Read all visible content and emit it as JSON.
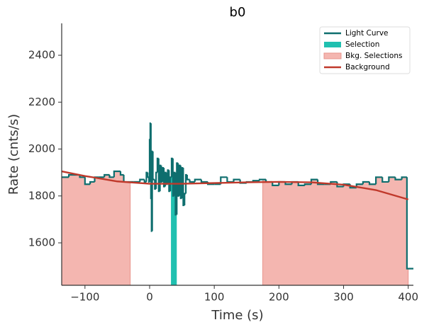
{
  "chart_data": {
    "type": "line",
    "title": "b0",
    "x_label": "Time (s)",
    "y_label": "Rate (cnts/s)",
    "xlim": [
      -136,
      408
    ],
    "ylim": [
      1419,
      2536
    ],
    "xticks": [
      {
        "value": -100,
        "label": "−100"
      },
      0,
      100,
      200,
      300,
      400
    ],
    "yticks": [
      1600,
      1800,
      2000,
      2200,
      2400
    ],
    "legend": "upper right",
    "series": [
      {
        "name": "Light Curve",
        "color": "#0e6e6e",
        "step": "post",
        "x": [
          -136,
          -125,
          -108,
          -100,
          -92,
          -85,
          -78,
          -70,
          -62,
          -55,
          -45,
          -40,
          -30,
          -25,
          -15,
          -8,
          -5,
          -3,
          -1,
          0,
          1,
          2,
          3,
          4,
          5,
          8,
          10,
          12,
          14,
          16,
          18,
          20,
          22,
          24,
          26,
          28,
          30,
          32,
          34,
          36,
          38,
          40,
          42,
          44,
          46,
          48,
          50,
          52,
          54,
          56,
          58,
          62,
          70,
          80,
          90,
          100,
          110,
          120,
          130,
          140,
          150,
          160,
          170,
          180,
          190,
          200,
          210,
          220,
          230,
          240,
          250,
          260,
          270,
          280,
          290,
          300,
          310,
          320,
          330,
          340,
          350,
          360,
          370,
          380,
          390,
          398
        ],
        "values": [
          1880,
          1890,
          1880,
          1850,
          1860,
          1880,
          1880,
          1890,
          1880,
          1905,
          1890,
          1860,
          1860,
          1860,
          1870,
          1860,
          1900,
          1880,
          1860,
          2040,
          2110,
          1790,
          1650,
          1990,
          1870,
          1830,
          1900,
          1960,
          1820,
          1930,
          1860,
          1920,
          1840,
          1900,
          1850,
          1910,
          1820,
          1880,
          1960,
          1800,
          1900,
          1720,
          1940,
          1800,
          1930,
          1790,
          1920,
          1760,
          1810,
          1890,
          1870,
          1860,
          1870,
          1860,
          1850,
          1850,
          1880,
          1860,
          1870,
          1855,
          1860,
          1865,
          1870,
          1860,
          1845,
          1860,
          1850,
          1860,
          1845,
          1850,
          1870,
          1850,
          1850,
          1860,
          1840,
          1850,
          1835,
          1850,
          1860,
          1850,
          1880,
          1860,
          1880,
          1870,
          1880,
          1490
        ]
      },
      {
        "name": "Background",
        "color": "#c0392b",
        "x": [
          -136,
          -100,
          -50,
          0,
          50,
          100,
          150,
          200,
          250,
          300,
          350,
          400
        ],
        "values": [
          1905,
          1885,
          1862,
          1852,
          1852,
          1855,
          1858,
          1860,
          1858,
          1848,
          1825,
          1785
        ]
      }
    ],
    "spans": [
      {
        "name": "Selection",
        "color": "#20c0b0",
        "intervals": [
          [
            33,
            42
          ]
        ]
      },
      {
        "name": "Bkg. Selections",
        "color": "#f4b6b0",
        "intervals": [
          [
            -136,
            -30
          ],
          [
            175,
            400
          ]
        ]
      }
    ]
  }
}
